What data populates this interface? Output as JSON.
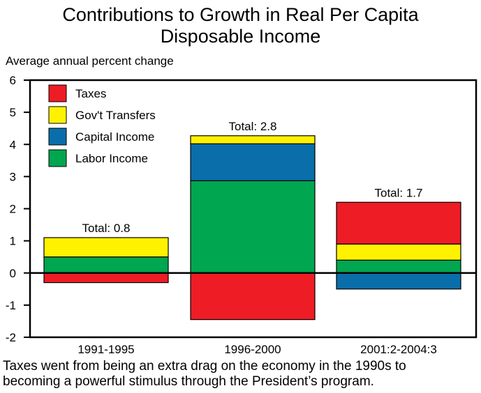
{
  "title_lines": [
    "Contributions to Growth in Real Per Capita",
    "Disposable Income"
  ],
  "caption_lines": [
    "Taxes went from being an extra drag on the economy in the 1990s to",
    "becoming a powerful stimulus through the President’s program."
  ],
  "chart_data": {
    "type": "bar",
    "stacked": true,
    "title": "Contributions to Growth in Real Per Capita Disposable Income",
    "ylabel": "Average annual percent change",
    "xlabel": "",
    "ylim": [
      -2,
      6
    ],
    "yticks": [
      6,
      5,
      4,
      3,
      2,
      1,
      0,
      -1,
      -2
    ],
    "categories": [
      "1991-1995",
      "1996-2000",
      "2001:2-2004:3"
    ],
    "totals_labels": [
      "Total: 0.8",
      "Total: 2.8",
      "Total: 1.7"
    ],
    "series": [
      {
        "name": "Taxes",
        "color": "#ee1c25",
        "values": [
          -0.3,
          -1.45,
          1.3
        ]
      },
      {
        "name": "Gov't Transfers",
        "color": "#fff200",
        "values": [
          0.6,
          0.25,
          0.5
        ]
      },
      {
        "name": "Capital Income",
        "color": "#0a6eaa",
        "values": [
          0.0,
          1.15,
          -0.5
        ]
      },
      {
        "name": "Labor Income",
        "color": "#00a650",
        "values": [
          0.5,
          2.87,
          0.4
        ]
      }
    ],
    "stack_order": [
      "Labor Income",
      "Capital Income",
      "Gov't Transfers",
      "Taxes"
    ],
    "legend_order": [
      "Taxes",
      "Gov't Transfers",
      "Capital Income",
      "Labor Income"
    ],
    "legend_position": "top-left",
    "grid": false
  }
}
